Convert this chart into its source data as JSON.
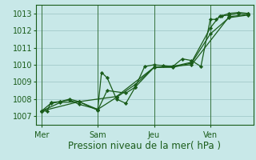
{
  "bg_color": "#c8e8e8",
  "grid_color": "#a8cece",
  "line_color": "#1a5c1a",
  "marker_color": "#1a5c1a",
  "xlabel": "Pression niveau de la mer( hPa )",
  "xlabel_fontsize": 8.5,
  "tick_fontsize": 7.0,
  "ylim": [
    1006.5,
    1013.5
  ],
  "yticks": [
    1007,
    1008,
    1009,
    1010,
    1011,
    1012,
    1013
  ],
  "day_labels": [
    "Mer",
    "Sam",
    "Jeu",
    "Ven"
  ],
  "day_positions": [
    0,
    3,
    6,
    9
  ],
  "xlim": [
    -0.3,
    11.3
  ],
  "series": [
    [
      0.0,
      1007.3,
      0.3,
      1007.3,
      0.5,
      1007.8,
      1.0,
      1007.85,
      1.5,
      1007.95,
      2.0,
      1007.7,
      3.0,
      1007.4,
      3.2,
      1009.55,
      3.5,
      1009.25,
      4.0,
      1008.0,
      4.5,
      1007.75,
      5.0,
      1008.7,
      5.5,
      1009.9,
      6.0,
      1010.0,
      6.5,
      1009.95,
      7.0,
      1009.9,
      7.5,
      1010.35,
      8.0,
      1010.25,
      8.5,
      1009.9,
      9.0,
      1012.65,
      9.3,
      1012.65,
      9.6,
      1012.85,
      10.0,
      1013.0,
      10.5,
      1013.05,
      11.0,
      1013.0
    ],
    [
      0.0,
      1007.3,
      0.5,
      1007.75,
      1.0,
      1007.85,
      1.5,
      1008.0,
      2.0,
      1007.85,
      3.0,
      1007.35,
      3.5,
      1008.5,
      4.5,
      1008.35,
      5.0,
      1008.7,
      6.0,
      1009.85,
      7.0,
      1009.9,
      8.0,
      1010.15,
      9.0,
      1012.15,
      9.5,
      1012.85,
      10.0,
      1012.9,
      10.5,
      1013.0,
      11.0,
      1013.0
    ],
    [
      0.0,
      1007.3,
      1.0,
      1007.8,
      2.0,
      1007.85,
      3.0,
      1007.4,
      4.0,
      1008.1,
      5.0,
      1008.85,
      6.0,
      1009.85,
      7.0,
      1009.85,
      8.0,
      1010.1,
      9.0,
      1011.8,
      10.0,
      1012.75,
      11.0,
      1012.9
    ],
    [
      0.0,
      1007.3,
      2.0,
      1007.85,
      4.0,
      1008.15,
      6.0,
      1009.85,
      8.0,
      1010.0,
      10.0,
      1012.8,
      11.0,
      1012.95
    ]
  ]
}
